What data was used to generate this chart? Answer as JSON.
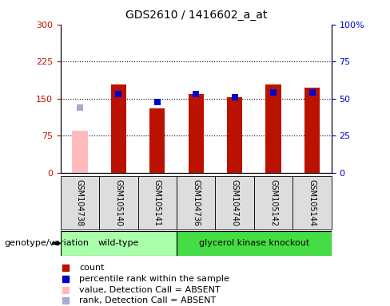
{
  "title": "GDS2610 / 1416602_a_at",
  "samples": [
    "GSM104738",
    "GSM105140",
    "GSM105141",
    "GSM104736",
    "GSM104740",
    "GSM105142",
    "GSM105144"
  ],
  "count_values": [
    85,
    178,
    130,
    160,
    153,
    178,
    173
  ],
  "rank_values": [
    44,
    53,
    48,
    53,
    51,
    54,
    54
  ],
  "absent_flags": [
    true,
    false,
    false,
    false,
    false,
    false,
    false
  ],
  "ylim_left": [
    0,
    300
  ],
  "ylim_right": [
    0,
    100
  ],
  "yticks_left": [
    0,
    75,
    150,
    225,
    300
  ],
  "yticks_right": [
    0,
    25,
    50,
    75,
    100
  ],
  "yticklabels_right": [
    "0",
    "25",
    "50",
    "75",
    "100%"
  ],
  "color_count_normal": "#bb1100",
  "color_count_absent": "#ffbbbb",
  "color_rank_normal": "#0000cc",
  "color_rank_absent": "#aaaacc",
  "wt_color": "#aaffaa",
  "gk_color": "#44dd44",
  "bar_width": 0.4,
  "rank_marker_size": 6,
  "legend_labels": [
    "count",
    "percentile rank within the sample",
    "value, Detection Call = ABSENT",
    "rank, Detection Call = ABSENT"
  ],
  "legend_colors": [
    "#bb1100",
    "#0000cc",
    "#ffbbbb",
    "#aaaacc"
  ],
  "xlabel_group": "genotype/variation",
  "wt_label": "wild-type",
  "gk_label": "glycerol kinase knockout",
  "wt_count": 3,
  "gk_count": 4
}
